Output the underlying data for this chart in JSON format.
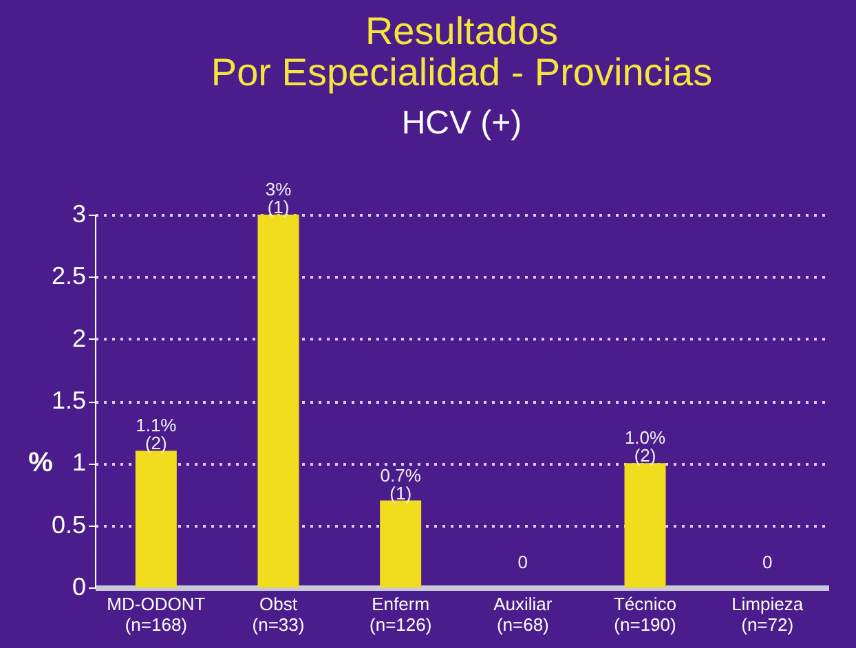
{
  "chart_data": {
    "type": "bar",
    "title": "Resultados\nPor Especialidad - Provincias",
    "subtitle": "HCV (+)",
    "ylabel": "%",
    "categories": [
      "MD-ODONT\n(n=168)",
      "Obst\n(n=33)",
      "Enferm\n(n=126)",
      "Auxiliar\n(n=68)",
      "Técnico\n(n=190)",
      "Limpieza\n(n=72)"
    ],
    "values": [
      1.1,
      3,
      0.7,
      0,
      1.0,
      0
    ],
    "value_labels": [
      "1.1%\n(2)",
      "3%\n(1)",
      "0.7%\n(1)",
      "0",
      "1.0%\n(2)",
      "0"
    ],
    "color": "#f2dc1e",
    "ylim": [
      0,
      3
    ],
    "yticks": [
      0,
      0.5,
      1,
      1.5,
      2,
      2.5,
      3
    ],
    "grid": "y"
  }
}
